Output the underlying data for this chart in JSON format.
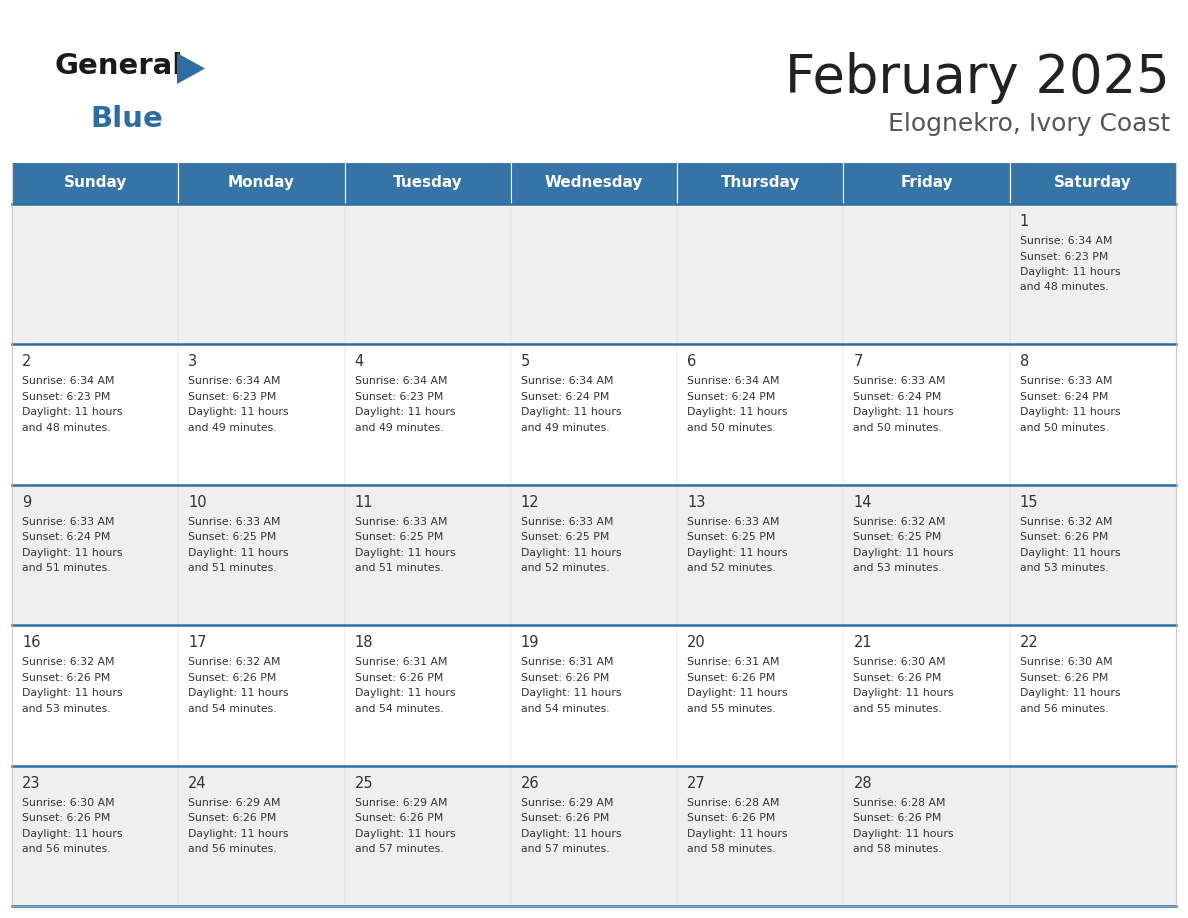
{
  "title": "February 2025",
  "subtitle": "Elognekro, Ivory Coast",
  "header_color": "#3674a8",
  "header_text_color": "#FFFFFF",
  "cell_bg_even": "#EFEFEF",
  "cell_bg_odd": "#FFFFFF",
  "border_color": "#2E6DA4",
  "day_names": [
    "Sunday",
    "Monday",
    "Tuesday",
    "Wednesday",
    "Thursday",
    "Friday",
    "Saturday"
  ],
  "title_color": "#222222",
  "subtitle_color": "#555555",
  "logo_general_color": "#1a1a1a",
  "logo_blue_color": "#2E6DA4",
  "logo_triangle_color": "#2E6DA4",
  "days": [
    {
      "day": 1,
      "col": 6,
      "row": 0,
      "sunrise": "6:34 AM",
      "sunset": "6:23 PM",
      "daylight_hours": 11,
      "daylight_minutes": 48
    },
    {
      "day": 2,
      "col": 0,
      "row": 1,
      "sunrise": "6:34 AM",
      "sunset": "6:23 PM",
      "daylight_hours": 11,
      "daylight_minutes": 48
    },
    {
      "day": 3,
      "col": 1,
      "row": 1,
      "sunrise": "6:34 AM",
      "sunset": "6:23 PM",
      "daylight_hours": 11,
      "daylight_minutes": 49
    },
    {
      "day": 4,
      "col": 2,
      "row": 1,
      "sunrise": "6:34 AM",
      "sunset": "6:23 PM",
      "daylight_hours": 11,
      "daylight_minutes": 49
    },
    {
      "day": 5,
      "col": 3,
      "row": 1,
      "sunrise": "6:34 AM",
      "sunset": "6:24 PM",
      "daylight_hours": 11,
      "daylight_minutes": 49
    },
    {
      "day": 6,
      "col": 4,
      "row": 1,
      "sunrise": "6:34 AM",
      "sunset": "6:24 PM",
      "daylight_hours": 11,
      "daylight_minutes": 50
    },
    {
      "day": 7,
      "col": 5,
      "row": 1,
      "sunrise": "6:33 AM",
      "sunset": "6:24 PM",
      "daylight_hours": 11,
      "daylight_minutes": 50
    },
    {
      "day": 8,
      "col": 6,
      "row": 1,
      "sunrise": "6:33 AM",
      "sunset": "6:24 PM",
      "daylight_hours": 11,
      "daylight_minutes": 50
    },
    {
      "day": 9,
      "col": 0,
      "row": 2,
      "sunrise": "6:33 AM",
      "sunset": "6:24 PM",
      "daylight_hours": 11,
      "daylight_minutes": 51
    },
    {
      "day": 10,
      "col": 1,
      "row": 2,
      "sunrise": "6:33 AM",
      "sunset": "6:25 PM",
      "daylight_hours": 11,
      "daylight_minutes": 51
    },
    {
      "day": 11,
      "col": 2,
      "row": 2,
      "sunrise": "6:33 AM",
      "sunset": "6:25 PM",
      "daylight_hours": 11,
      "daylight_minutes": 51
    },
    {
      "day": 12,
      "col": 3,
      "row": 2,
      "sunrise": "6:33 AM",
      "sunset": "6:25 PM",
      "daylight_hours": 11,
      "daylight_minutes": 52
    },
    {
      "day": 13,
      "col": 4,
      "row": 2,
      "sunrise": "6:33 AM",
      "sunset": "6:25 PM",
      "daylight_hours": 11,
      "daylight_minutes": 52
    },
    {
      "day": 14,
      "col": 5,
      "row": 2,
      "sunrise": "6:32 AM",
      "sunset": "6:25 PM",
      "daylight_hours": 11,
      "daylight_minutes": 53
    },
    {
      "day": 15,
      "col": 6,
      "row": 2,
      "sunrise": "6:32 AM",
      "sunset": "6:26 PM",
      "daylight_hours": 11,
      "daylight_minutes": 53
    },
    {
      "day": 16,
      "col": 0,
      "row": 3,
      "sunrise": "6:32 AM",
      "sunset": "6:26 PM",
      "daylight_hours": 11,
      "daylight_minutes": 53
    },
    {
      "day": 17,
      "col": 1,
      "row": 3,
      "sunrise": "6:32 AM",
      "sunset": "6:26 PM",
      "daylight_hours": 11,
      "daylight_minutes": 54
    },
    {
      "day": 18,
      "col": 2,
      "row": 3,
      "sunrise": "6:31 AM",
      "sunset": "6:26 PM",
      "daylight_hours": 11,
      "daylight_minutes": 54
    },
    {
      "day": 19,
      "col": 3,
      "row": 3,
      "sunrise": "6:31 AM",
      "sunset": "6:26 PM",
      "daylight_hours": 11,
      "daylight_minutes": 54
    },
    {
      "day": 20,
      "col": 4,
      "row": 3,
      "sunrise": "6:31 AM",
      "sunset": "6:26 PM",
      "daylight_hours": 11,
      "daylight_minutes": 55
    },
    {
      "day": 21,
      "col": 5,
      "row": 3,
      "sunrise": "6:30 AM",
      "sunset": "6:26 PM",
      "daylight_hours": 11,
      "daylight_minutes": 55
    },
    {
      "day": 22,
      "col": 6,
      "row": 3,
      "sunrise": "6:30 AM",
      "sunset": "6:26 PM",
      "daylight_hours": 11,
      "daylight_minutes": 56
    },
    {
      "day": 23,
      "col": 0,
      "row": 4,
      "sunrise": "6:30 AM",
      "sunset": "6:26 PM",
      "daylight_hours": 11,
      "daylight_minutes": 56
    },
    {
      "day": 24,
      "col": 1,
      "row": 4,
      "sunrise": "6:29 AM",
      "sunset": "6:26 PM",
      "daylight_hours": 11,
      "daylight_minutes": 56
    },
    {
      "day": 25,
      "col": 2,
      "row": 4,
      "sunrise": "6:29 AM",
      "sunset": "6:26 PM",
      "daylight_hours": 11,
      "daylight_minutes": 57
    },
    {
      "day": 26,
      "col": 3,
      "row": 4,
      "sunrise": "6:29 AM",
      "sunset": "6:26 PM",
      "daylight_hours": 11,
      "daylight_minutes": 57
    },
    {
      "day": 27,
      "col": 4,
      "row": 4,
      "sunrise": "6:28 AM",
      "sunset": "6:26 PM",
      "daylight_hours": 11,
      "daylight_minutes": 58
    },
    {
      "day": 28,
      "col": 5,
      "row": 4,
      "sunrise": "6:28 AM",
      "sunset": "6:26 PM",
      "daylight_hours": 11,
      "daylight_minutes": 58
    }
  ]
}
